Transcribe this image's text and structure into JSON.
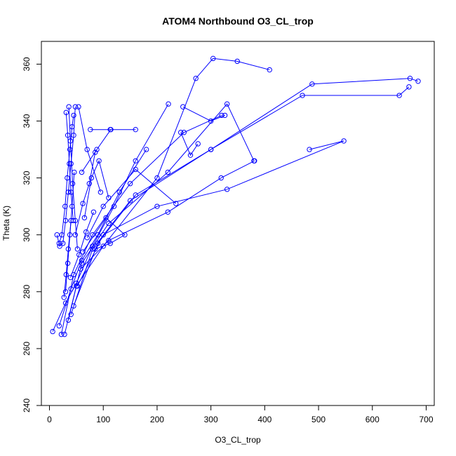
{
  "chart_data": {
    "type": "line",
    "title": "ATOM4 Northbound O3_CL_trop",
    "xlabel": "O3_CL_trop",
    "ylabel": "Theta (K)",
    "xlim": [
      -15,
      715
    ],
    "ylim": [
      240,
      368
    ],
    "xticks": [
      0,
      100,
      200,
      300,
      400,
      500,
      600,
      700
    ],
    "yticks": [
      240,
      260,
      280,
      300,
      320,
      340,
      360
    ],
    "grid": false,
    "legend": "none",
    "series_color": "#0000ff",
    "marker": "open-circle",
    "series": [
      {
        "x": [
          14,
          19,
          25,
          30,
          35,
          40,
          45,
          48
        ],
        "y": [
          300,
          296,
          297,
          305,
          315,
          325,
          335,
          345
        ]
      },
      {
        "x": [
          18,
          23,
          29,
          33,
          38,
          42,
          45
        ],
        "y": [
          297,
          300,
          310,
          320,
          330,
          338,
          342
        ]
      },
      {
        "x": [
          31,
          34,
          37,
          40,
          44
        ],
        "y": [
          343,
          335,
          325,
          315,
          305
        ]
      },
      {
        "x": [
          36,
          39,
          43,
          48,
          52
        ],
        "y": [
          345,
          333,
          318,
          305,
          295
        ]
      },
      {
        "x": [
          30,
          34,
          38,
          42,
          46
        ],
        "y": [
          280,
          290,
          300,
          310,
          322
        ]
      },
      {
        "x": [
          27,
          31,
          35,
          40
        ],
        "y": [
          278,
          286,
          295,
          305
        ]
      },
      {
        "x": [
          6,
          30,
          50,
          80,
          120,
          160,
          221
        ],
        "y": [
          266,
          276,
          283,
          296,
          310,
          326,
          346
        ]
      },
      {
        "x": [
          18,
          40,
          60,
          90,
          130,
          180
        ],
        "y": [
          268,
          281,
          291,
          300,
          315,
          330
        ]
      },
      {
        "x": [
          22,
          45,
          80,
          150,
          250,
          320
        ],
        "y": [
          265,
          286,
          300,
          318,
          336,
          342
        ]
      },
      {
        "x": [
          28,
          50,
          100,
          200,
          272,
          304,
          349,
          409
        ],
        "y": [
          265,
          282,
          296,
          320,
          355,
          362,
          361,
          358
        ]
      },
      {
        "x": [
          35,
          60,
          110,
          220,
          330,
          380
        ],
        "y": [
          270,
          290,
          304,
          322,
          346,
          326
        ]
      },
      {
        "x": [
          40,
          80,
          150,
          300,
          488,
          670,
          685
        ],
        "y": [
          272,
          295,
          312,
          330,
          353,
          355,
          354
        ]
      },
      {
        "x": [
          45,
          90,
          160,
          300,
          470,
          650,
          668
        ],
        "y": [
          275,
          297,
          314,
          330,
          349,
          349,
          352
        ]
      },
      {
        "x": [
          52,
          100,
          200,
          330,
          547,
          483
        ],
        "y": [
          282,
          300,
          310,
          316,
          333,
          330
        ]
      },
      {
        "x": [
          58,
          110,
          220,
          319,
          381
        ],
        "y": [
          288,
          298,
          308,
          320,
          326
        ]
      },
      {
        "x": [
          62,
          105,
          140,
          113,
          85
        ],
        "y": [
          294,
          306,
          300,
          297,
          295
        ]
      },
      {
        "x": [
          70,
          100,
          160,
          235
        ],
        "y": [
          299,
          310,
          323,
          311
        ]
      },
      {
        "x": [
          76,
          113,
          160
        ],
        "y": [
          337,
          337,
          337
        ]
      },
      {
        "x": [
          60,
          88,
          114
        ],
        "y": [
          322,
          330,
          337
        ]
      },
      {
        "x": [
          54,
          70,
          95
        ],
        "y": [
          345,
          330,
          315
        ]
      },
      {
        "x": [
          65,
          78,
          92,
          110
        ],
        "y": [
          306,
          320,
          326,
          313
        ]
      },
      {
        "x": [
          48,
          62,
          74,
          85
        ],
        "y": [
          300,
          311,
          318,
          329
        ]
      },
      {
        "x": [
          39,
          55,
          68,
          82
        ],
        "y": [
          285,
          293,
          301,
          308
        ]
      },
      {
        "x": [
          244,
          262,
          276
        ],
        "y": [
          336,
          328,
          332
        ]
      },
      {
        "x": [
          248,
          300,
          326
        ],
        "y": [
          345,
          340,
          342
        ]
      }
    ]
  }
}
